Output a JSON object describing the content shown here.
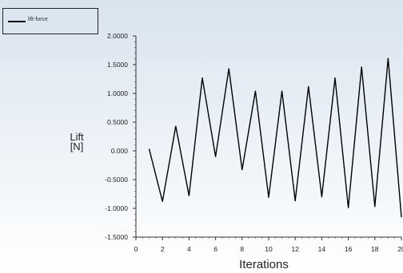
{
  "chart_data": {
    "type": "line",
    "xlabel": "Iterations",
    "ylabel_line1": "Lift",
    "ylabel_line2": "[N]",
    "xlim": [
      0,
      20
    ],
    "ylim": [
      -1.5,
      2.0
    ],
    "x_ticks": [
      "0",
      "2",
      "4",
      "6",
      "8",
      "10",
      "12",
      "14",
      "16",
      "18",
      "20"
    ],
    "y_ticks": [
      "2.0000",
      "1.5000",
      "1.0000",
      "0.5000",
      "0.000",
      "-0.5000",
      "-1.0000",
      "-1.5000"
    ],
    "series": [
      {
        "name": "lift-force",
        "color": "#000000",
        "x": [
          1,
          2,
          3,
          4,
          5,
          6,
          7,
          8,
          9,
          10,
          11,
          12,
          13,
          14,
          15,
          16,
          17,
          18,
          19,
          20
        ],
        "y": [
          0.03,
          -0.88,
          0.43,
          -0.78,
          1.27,
          -0.1,
          1.43,
          -0.33,
          1.04,
          -0.81,
          1.04,
          -0.87,
          1.12,
          -0.8,
          1.27,
          -0.99,
          1.46,
          -0.97,
          1.61,
          -1.15
        ]
      }
    ],
    "legend": "top-left",
    "grid": false
  }
}
